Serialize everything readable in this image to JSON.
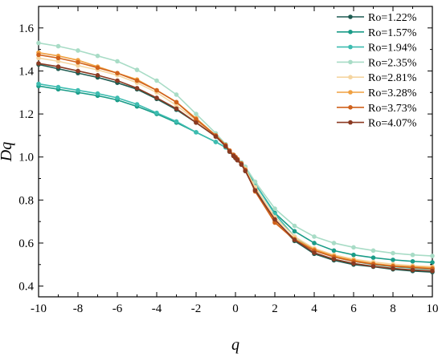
{
  "chart_data": {
    "type": "line",
    "xlabel": "q",
    "ylabel": "Dq",
    "xlim": [
      -10,
      10
    ],
    "ylim": [
      0.35,
      1.7
    ],
    "x_ticks": [
      -10,
      -8,
      -6,
      -4,
      -2,
      0,
      2,
      4,
      6,
      8,
      10
    ],
    "y_ticks": [
      0.4,
      0.6,
      0.8,
      1.0,
      1.2,
      1.4,
      1.6
    ],
    "y_tick_labels": [
      "0.4",
      "0.6",
      "0.8",
      "1.0",
      "1.2",
      "1.4",
      "1.6"
    ],
    "legend_position": "top-right",
    "grid": false,
    "x": [
      -10,
      -9,
      -8,
      -7,
      -6,
      -5,
      -4,
      -3,
      -2,
      -1,
      -0.5,
      -0.3,
      -0.1,
      0,
      0.1,
      0.3,
      0.5,
      1,
      2,
      3,
      4,
      5,
      6,
      7,
      8,
      9,
      10
    ],
    "series": [
      {
        "name": "Ro=1.22%",
        "color": "#1f5c52",
        "values": [
          1.43,
          1.41,
          1.39,
          1.37,
          1.345,
          1.315,
          1.27,
          1.22,
          1.16,
          1.095,
          1.05,
          1.025,
          1.005,
          0.995,
          0.985,
          0.965,
          0.935,
          0.85,
          0.705,
          0.61,
          0.55,
          0.52,
          0.5,
          0.49,
          0.478,
          0.47,
          0.465
        ]
      },
      {
        "name": "Ro=1.57%",
        "color": "#1a9c88",
        "values": [
          1.33,
          1.315,
          1.3,
          1.285,
          1.265,
          1.235,
          1.2,
          1.16,
          1.115,
          1.07,
          1.045,
          1.025,
          1.01,
          1.0,
          0.99,
          0.97,
          0.95,
          0.875,
          0.74,
          0.655,
          0.6,
          0.565,
          0.545,
          0.532,
          0.522,
          0.515,
          0.51
        ]
      },
      {
        "name": "Ro=1.94%",
        "color": "#3dbcb0",
        "values": [
          1.34,
          1.325,
          1.31,
          1.295,
          1.275,
          1.245,
          1.205,
          1.165,
          1.115,
          1.07,
          1.045,
          1.025,
          1.01,
          1.0,
          0.99,
          0.97,
          0.95,
          0.875,
          0.735,
          0.63,
          0.57,
          0.535,
          0.515,
          0.5,
          0.49,
          0.483,
          0.478
        ]
      },
      {
        "name": "Ro=2.35%",
        "color": "#a8dcc6",
        "values": [
          1.53,
          1.515,
          1.495,
          1.47,
          1.445,
          1.405,
          1.355,
          1.29,
          1.2,
          1.11,
          1.06,
          1.03,
          1.01,
          1.0,
          0.99,
          0.975,
          0.955,
          0.885,
          0.76,
          0.68,
          0.63,
          0.6,
          0.58,
          0.565,
          0.553,
          0.545,
          0.54
        ]
      },
      {
        "name": "Ro=2.81%",
        "color": "#f5d5a0",
        "values": [
          1.46,
          1.445,
          1.425,
          1.405,
          1.38,
          1.345,
          1.3,
          1.24,
          1.17,
          1.1,
          1.055,
          1.03,
          1.01,
          1.0,
          0.99,
          0.97,
          0.945,
          0.86,
          0.72,
          0.63,
          0.575,
          0.545,
          0.525,
          0.512,
          0.502,
          0.495,
          0.49
        ]
      },
      {
        "name": "Ro=3.28%",
        "color": "#f0a040",
        "values": [
          1.485,
          1.47,
          1.45,
          1.42,
          1.39,
          1.36,
          1.31,
          1.255,
          1.18,
          1.1,
          1.055,
          1.03,
          1.01,
          1.0,
          0.99,
          0.97,
          0.94,
          0.845,
          0.7,
          0.62,
          0.57,
          0.54,
          0.52,
          0.505,
          0.495,
          0.49,
          0.485
        ]
      },
      {
        "name": "Ro=3.73%",
        "color": "#d0621c",
        "values": [
          1.475,
          1.46,
          1.44,
          1.415,
          1.39,
          1.355,
          1.31,
          1.255,
          1.175,
          1.1,
          1.055,
          1.03,
          1.01,
          1.0,
          0.99,
          0.97,
          0.94,
          0.84,
          0.695,
          0.615,
          0.565,
          0.535,
          0.515,
          0.502,
          0.492,
          0.486,
          0.48
        ]
      },
      {
        "name": "Ro=4.07%",
        "color": "#8b3a22",
        "values": [
          1.435,
          1.42,
          1.4,
          1.38,
          1.355,
          1.32,
          1.275,
          1.225,
          1.16,
          1.095,
          1.05,
          1.025,
          1.005,
          0.995,
          0.985,
          0.965,
          0.935,
          0.845,
          0.71,
          0.615,
          0.555,
          0.525,
          0.505,
          0.492,
          0.482,
          0.475,
          0.47
        ]
      }
    ]
  }
}
